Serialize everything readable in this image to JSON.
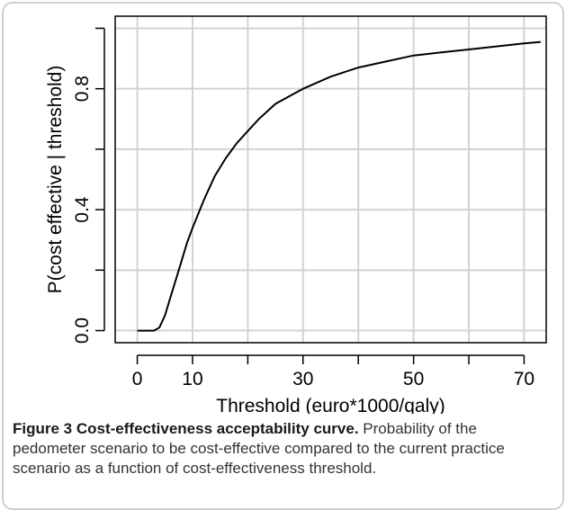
{
  "figure": {
    "label": "Figure 3",
    "title": "Cost-effectiveness acceptability curve.",
    "description": "Probability of the pedometer scenario to be cost-effective compared to the current practice scenario as a function of cost-effectiveness threshold."
  },
  "chart_data": {
    "type": "line",
    "xlabel": "Threshold (euro*1000/qaly)",
    "ylabel": "P(cost effective | threshold)",
    "xlim": [
      -4,
      74
    ],
    "ylim": [
      -0.04,
      1.04
    ],
    "x_ticks": [
      0,
      10,
      20,
      30,
      40,
      50,
      60,
      70
    ],
    "x_tick_labels": [
      "0",
      "10",
      "",
      "30",
      "",
      "50",
      "",
      "70"
    ],
    "y_ticks": [
      0.0,
      0.2,
      0.4,
      0.6,
      0.8,
      1.0
    ],
    "y_tick_labels": [
      "0.0",
      "",
      "0.4",
      "",
      "0.8",
      ""
    ],
    "grid": true,
    "series": [
      {
        "color": "#000000",
        "x": [
          0,
          2,
          3,
          4,
          5,
          6,
          7,
          8,
          9,
          10,
          12,
          14,
          16,
          18,
          20,
          22,
          25,
          28,
          30,
          35,
          40,
          45,
          50,
          55,
          60,
          65,
          70,
          73
        ],
        "y": [
          0.0,
          0.0,
          0.0,
          0.01,
          0.05,
          0.11,
          0.17,
          0.23,
          0.29,
          0.34,
          0.43,
          0.51,
          0.57,
          0.62,
          0.66,
          0.7,
          0.75,
          0.78,
          0.8,
          0.84,
          0.87,
          0.89,
          0.91,
          0.92,
          0.93,
          0.94,
          0.95,
          0.955
        ]
      }
    ]
  }
}
